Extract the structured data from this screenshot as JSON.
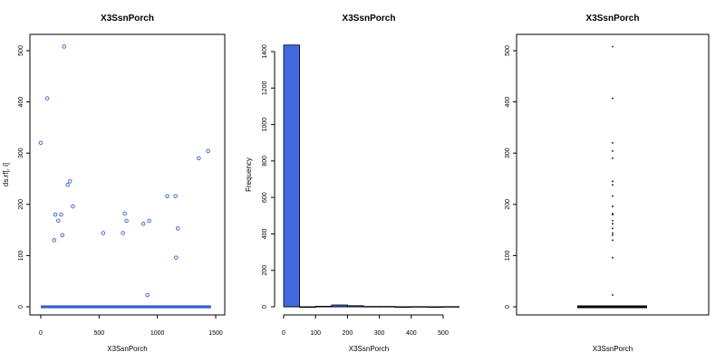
{
  "chart_data": [
    {
      "type": "scatter",
      "title": "X3SsnPorch",
      "xlabel": "X3SsnPorch",
      "ylabel": "ds.rf[, i]",
      "xlim": [
        0,
        1500
      ],
      "ylim": [
        0,
        520
      ],
      "xticks": [
        "0",
        "500",
        "1000",
        "1500"
      ],
      "yticks": [
        "0",
        "100",
        "200",
        "300",
        "400",
        "500"
      ],
      "point_color": "#3a5fcd",
      "zero_band": {
        "x_from": 0,
        "x_to": 1460,
        "y": 0
      },
      "points": [
        {
          "x": 0,
          "y": 320
        },
        {
          "x": 55,
          "y": 407
        },
        {
          "x": 115,
          "y": 130
        },
        {
          "x": 125,
          "y": 180
        },
        {
          "x": 150,
          "y": 168
        },
        {
          "x": 175,
          "y": 180
        },
        {
          "x": 185,
          "y": 140
        },
        {
          "x": 200,
          "y": 508
        },
        {
          "x": 230,
          "y": 238
        },
        {
          "x": 250,
          "y": 245
        },
        {
          "x": 275,
          "y": 196
        },
        {
          "x": 535,
          "y": 144
        },
        {
          "x": 705,
          "y": 144
        },
        {
          "x": 720,
          "y": 182
        },
        {
          "x": 735,
          "y": 168
        },
        {
          "x": 880,
          "y": 162
        },
        {
          "x": 915,
          "y": 23
        },
        {
          "x": 930,
          "y": 168
        },
        {
          "x": 1085,
          "y": 216
        },
        {
          "x": 1155,
          "y": 216
        },
        {
          "x": 1160,
          "y": 96
        },
        {
          "x": 1175,
          "y": 153
        },
        {
          "x": 1355,
          "y": 290
        },
        {
          "x": 1435,
          "y": 304
        }
      ]
    },
    {
      "type": "bar",
      "title": "X3SsnPorch",
      "xlabel": "X3SsnPorch",
      "ylabel": "Frequency",
      "xlim": [
        0,
        550
      ],
      "ylim": [
        0,
        1460
      ],
      "xticks": [
        "0",
        "100",
        "200",
        "300",
        "400",
        "500"
      ],
      "yticks": [
        "0",
        "200",
        "400",
        "600",
        "800",
        "1000",
        "1200",
        "1400"
      ],
      "bar_color": "#4169e1",
      "bins": [
        {
          "from": 0,
          "to": 50,
          "count": 1436
        },
        {
          "from": 50,
          "to": 100,
          "count": 0
        },
        {
          "from": 100,
          "to": 150,
          "count": 3
        },
        {
          "from": 150,
          "to": 200,
          "count": 10
        },
        {
          "from": 200,
          "to": 250,
          "count": 6
        },
        {
          "from": 250,
          "to": 300,
          "count": 2
        },
        {
          "from": 300,
          "to": 350,
          "count": 2
        },
        {
          "from": 350,
          "to": 400,
          "count": 0
        },
        {
          "from": 400,
          "to": 450,
          "count": 1
        },
        {
          "from": 450,
          "to": 500,
          "count": 0
        },
        {
          "from": 500,
          "to": 550,
          "count": 1
        }
      ]
    },
    {
      "type": "box",
      "title": "X3SsnPorch",
      "xlabel": "X3SsnPorch",
      "ylim": [
        0,
        520
      ],
      "yticks": [
        "0",
        "100",
        "200",
        "300",
        "400",
        "500"
      ],
      "median": 0,
      "q1": 0,
      "q3": 0,
      "outliers": [
        23,
        96,
        130,
        140,
        144,
        153,
        162,
        168,
        180,
        182,
        196,
        216,
        238,
        245,
        290,
        304,
        320,
        407,
        508
      ]
    }
  ]
}
